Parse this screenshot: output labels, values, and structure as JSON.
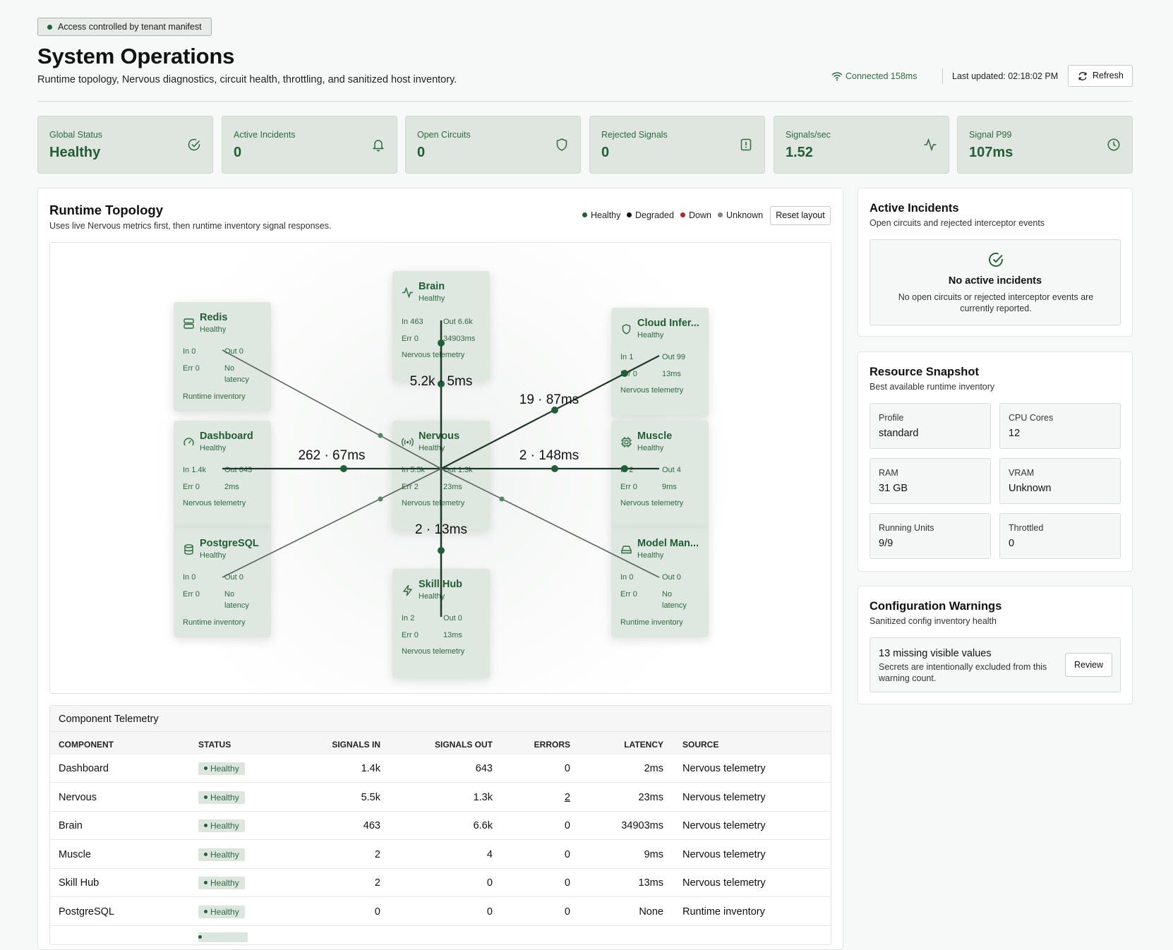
{
  "access_badge": "Access controlled by tenant manifest",
  "page_title": "System Operations",
  "page_subtitle": "Runtime topology, Nervous diagnostics, circuit health, throttling, and sanitized host inventory.",
  "connection": {
    "status": "Connected 158ms",
    "last_updated": "Last updated: 02:18:02 PM",
    "refresh_label": "Refresh"
  },
  "stats": [
    {
      "label": "Global Status",
      "value": "Healthy",
      "icon": "check-circle-icon"
    },
    {
      "label": "Active Incidents",
      "value": "0",
      "icon": "bell-icon"
    },
    {
      "label": "Open Circuits",
      "value": "0",
      "icon": "shield-icon"
    },
    {
      "label": "Rejected Signals",
      "value": "0",
      "icon": "alert-icon"
    },
    {
      "label": "Signals/sec",
      "value": "1.52",
      "icon": "activity-icon"
    },
    {
      "label": "Signal P99",
      "value": "107ms",
      "icon": "clock-icon"
    }
  ],
  "topology": {
    "title": "Runtime Topology",
    "subtitle": "Uses live Nervous metrics first, then runtime inventory signal responses.",
    "legend": [
      {
        "label": "Healthy",
        "color": "#1f5f38"
      },
      {
        "label": "Degraded",
        "color": "#111111"
      },
      {
        "label": "Down",
        "color": "#b32424"
      },
      {
        "label": "Unknown",
        "color": "#7d8288"
      }
    ],
    "reset_label": "Reset layout",
    "nodes": {
      "brain": {
        "name": "Brain",
        "status": "Healthy",
        "in": "In 463",
        "out": "Out 6.6k",
        "err": "Err 0",
        "lat": "34903ms",
        "source": "Nervous telemetry"
      },
      "redis": {
        "name": "Redis",
        "status": "Healthy",
        "in": "In 0",
        "out": "Out 0",
        "err": "Err 0",
        "lat": "No latency",
        "source": "Runtime inventory"
      },
      "cloud": {
        "name": "Cloud Infer...",
        "status": "Healthy",
        "in": "In 1",
        "out": "Out 99",
        "err": "Err 0",
        "lat": "13ms",
        "source": "Nervous telemetry"
      },
      "dashboard": {
        "name": "Dashboard",
        "status": "Healthy",
        "in": "In 1.4k",
        "out": "Out 643",
        "err": "Err 0",
        "lat": "2ms",
        "source": "Nervous telemetry"
      },
      "nervous": {
        "name": "Nervous",
        "status": "Healthy",
        "in": "In 5.5k",
        "out": "Out 1.3k",
        "err": "Err 2",
        "lat": "23ms",
        "source": "Nervous telemetry"
      },
      "muscle": {
        "name": "Muscle",
        "status": "Healthy",
        "in": "In 2",
        "out": "Out 4",
        "err": "Err 0",
        "lat": "9ms",
        "source": "Nervous telemetry"
      },
      "postgres": {
        "name": "PostgreSQL",
        "status": "Healthy",
        "in": "In 0",
        "out": "Out 0",
        "err": "Err 0",
        "lat": "No latency",
        "source": "Runtime inventory"
      },
      "skillhub": {
        "name": "Skill Hub",
        "status": "Healthy",
        "in": "In 2",
        "out": "Out 0",
        "err": "Err 0",
        "lat": "13ms",
        "source": "Nervous telemetry"
      },
      "modelman": {
        "name": "Model Man...",
        "status": "Healthy",
        "in": "In 0",
        "out": "Out 0",
        "err": "Err 0",
        "lat": "No latency",
        "source": "Runtime inventory"
      }
    },
    "edge_labels": {
      "brain": "5.2k · 5ms",
      "cloud": "19 · 87ms",
      "dashboard": "262 · 67ms",
      "muscle": "2 · 148ms",
      "skillhub": "2 · 13ms"
    }
  },
  "telemetry": {
    "title": "Component Telemetry",
    "columns": [
      "COMPONENT",
      "STATUS",
      "SIGNALS IN",
      "SIGNALS OUT",
      "ERRORS",
      "LATENCY",
      "SOURCE"
    ],
    "rows": [
      [
        "Dashboard",
        "Healthy",
        "1.4k",
        "643",
        "0",
        "2ms",
        "Nervous telemetry"
      ],
      [
        "Nervous",
        "Healthy",
        "5.5k",
        "1.3k",
        "2",
        "23ms",
        "Nervous telemetry"
      ],
      [
        "Brain",
        "Healthy",
        "463",
        "6.6k",
        "0",
        "34903ms",
        "Nervous telemetry"
      ],
      [
        "Muscle",
        "Healthy",
        "2",
        "4",
        "0",
        "9ms",
        "Nervous telemetry"
      ],
      [
        "Skill Hub",
        "Healthy",
        "2",
        "0",
        "0",
        "13ms",
        "Nervous telemetry"
      ],
      [
        "PostgreSQL",
        "Healthy",
        "0",
        "0",
        "0",
        "None",
        "Runtime inventory"
      ]
    ]
  },
  "incidents": {
    "title": "Active Incidents",
    "subtitle": "Open circuits and rejected interceptor events",
    "empty_title": "No active incidents",
    "empty_text": "No open circuits or rejected interceptor events are currently reported."
  },
  "resources": {
    "title": "Resource Snapshot",
    "subtitle": "Best available runtime inventory",
    "cells": [
      {
        "label": "Profile",
        "value": "standard"
      },
      {
        "label": "CPU Cores",
        "value": "12"
      },
      {
        "label": "RAM",
        "value": "31 GB"
      },
      {
        "label": "VRAM",
        "value": "Unknown"
      },
      {
        "label": "Running Units",
        "value": "9/9"
      },
      {
        "label": "Throttled",
        "value": "0"
      }
    ]
  },
  "config": {
    "title": "Configuration Warnings",
    "subtitle": "Sanitized config inventory health",
    "warning_title": "13 missing visible values",
    "warning_text": "Secrets are intentionally excluded from this warning count.",
    "review_label": "Review"
  }
}
